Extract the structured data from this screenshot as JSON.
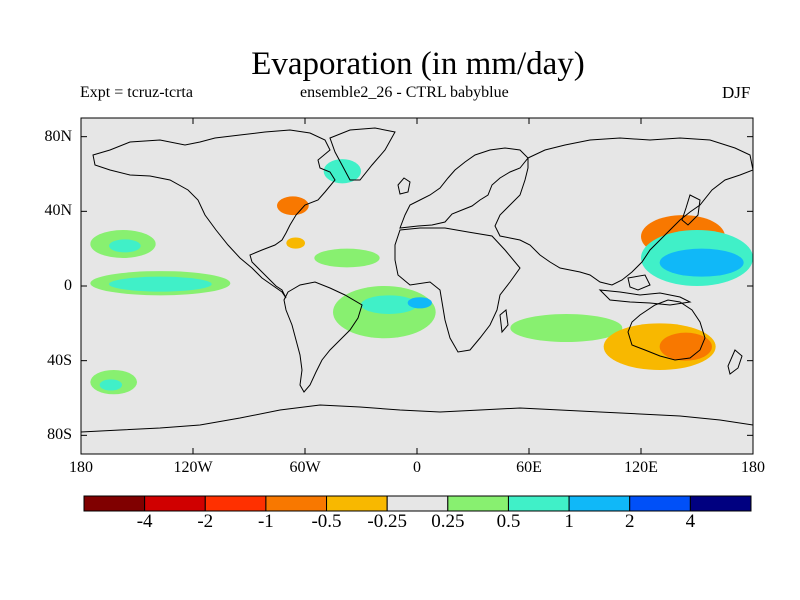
{
  "title": "Evaporation (in mm/day)",
  "subtitle_left": "Expt = tcruz-tcrta",
  "subtitle_center": "ensemble2_26 - CTRL babyblue",
  "subtitle_right": "DJF",
  "map": {
    "projection": "cylindrical-equidistant",
    "lon_range": [
      -180,
      180
    ],
    "lat_range": [
      -90,
      90
    ],
    "background_color": "#e6e6e6",
    "lat_ticks": [
      {
        "value": 80,
        "label": "80N"
      },
      {
        "value": 40,
        "label": "40N"
      },
      {
        "value": 0,
        "label": "0"
      },
      {
        "value": -40,
        "label": "40S"
      },
      {
        "value": -80,
        "label": "80S"
      }
    ],
    "lon_ticks": [
      {
        "value": -180,
        "label": "180"
      },
      {
        "value": -120,
        "label": "120W"
      },
      {
        "value": -60,
        "label": "60W"
      },
      {
        "value": 0,
        "label": "0"
      },
      {
        "value": 60,
        "label": "60E"
      },
      {
        "value": 120,
        "label": "120E"
      },
      {
        "value": 180,
        "label": "180"
      }
    ],
    "anomaly_regions": [
      {
        "name": "central-pacific-green",
        "level": "0.25-0.5",
        "color": "#88f070",
        "lon": [
          -175,
          -100
        ],
        "lat": [
          -5,
          8
        ]
      },
      {
        "name": "central-pacific-teal",
        "level": "0.5-1",
        "color": "#40f0c8",
        "lon": [
          -165,
          -110
        ],
        "lat": [
          -3,
          5
        ]
      },
      {
        "name": "north-pacific-green",
        "level": "0.25-0.5",
        "color": "#88f070",
        "lon": [
          -175,
          -140
        ],
        "lat": [
          15,
          30
        ]
      },
      {
        "name": "north-pacific-teal",
        "level": "0.5-1",
        "color": "#40f0c8",
        "lon": [
          -165,
          -148
        ],
        "lat": [
          18,
          25
        ]
      },
      {
        "name": "south-pacific-green",
        "level": "0.25-0.5",
        "color": "#88f070",
        "lon": [
          -175,
          -150
        ],
        "lat": [
          -58,
          -45
        ]
      },
      {
        "name": "south-pacific-teal",
        "level": "0.5-1",
        "color": "#40f0c8",
        "lon": [
          -170,
          -158
        ],
        "lat": [
          -56,
          -50
        ]
      },
      {
        "name": "south-atlantic-green",
        "level": "0.25-0.5",
        "color": "#88f070",
        "lon": [
          -45,
          10
        ],
        "lat": [
          -28,
          0
        ]
      },
      {
        "name": "south-atlantic-teal",
        "level": "0.5-1",
        "color": "#40f0c8",
        "lon": [
          -30,
          0
        ],
        "lat": [
          -15,
          -5
        ]
      },
      {
        "name": "south-atlantic-blue",
        "level": "1-2",
        "color": "#10b8f8",
        "lon": [
          -5,
          8
        ],
        "lat": [
          -12,
          -6
        ]
      },
      {
        "name": "north-atlantic-green",
        "level": "0.25-0.5",
        "color": "#88f070",
        "lon": [
          -55,
          -20
        ],
        "lat": [
          10,
          20
        ]
      },
      {
        "name": "north-atlantic-teal",
        "level": "0.5-1",
        "color": "#40f0c8",
        "lon": [
          -50,
          -30
        ],
        "lat": [
          55,
          68
        ]
      },
      {
        "name": "us-east-orange",
        "level": "-1 to -0.5",
        "color": "#f87800",
        "lon": [
          -75,
          -58
        ],
        "lat": [
          38,
          48
        ]
      },
      {
        "name": "mid-atlantic-yellow",
        "level": "-0.5 to -0.25",
        "color": "#f8b800",
        "lon": [
          -70,
          -60
        ],
        "lat": [
          20,
          26
        ]
      },
      {
        "name": "west-pacific-orange",
        "level": "-1 to -0.5",
        "color": "#f87800",
        "lon": [
          120,
          165
        ],
        "lat": [
          15,
          38
        ]
      },
      {
        "name": "west-pacific-teal",
        "level": "0.5-1",
        "color": "#40f0c8",
        "lon": [
          120,
          180
        ],
        "lat": [
          0,
          30
        ]
      },
      {
        "name": "west-pacific-blue",
        "level": "1-2",
        "color": "#10b8f8",
        "lon": [
          130,
          175
        ],
        "lat": [
          5,
          20
        ]
      },
      {
        "name": "indian-ocean-green",
        "level": "0.25-0.5",
        "color": "#88f070",
        "lon": [
          50,
          110
        ],
        "lat": [
          -30,
          -15
        ]
      },
      {
        "name": "australia-yellow",
        "level": "-0.5 to -0.25",
        "color": "#f8b800",
        "lon": [
          100,
          160
        ],
        "lat": [
          -45,
          -20
        ]
      },
      {
        "name": "australia-orange",
        "level": "-1 to -0.5",
        "color": "#f87800",
        "lon": [
          130,
          158
        ],
        "lat": [
          -40,
          -25
        ]
      }
    ]
  },
  "colorbar": {
    "colors": [
      "#800000",
      "#d00000",
      "#ff3000",
      "#f87800",
      "#f8b800",
      "#e6e6e6",
      "#88f070",
      "#40f0c8",
      "#10b8f8",
      "#0050f8",
      "#000080"
    ],
    "labels": [
      "-4",
      "-2",
      "-1",
      "-0.5",
      "-0.25",
      "0.25",
      "0.5",
      "1",
      "2",
      "4"
    ]
  }
}
